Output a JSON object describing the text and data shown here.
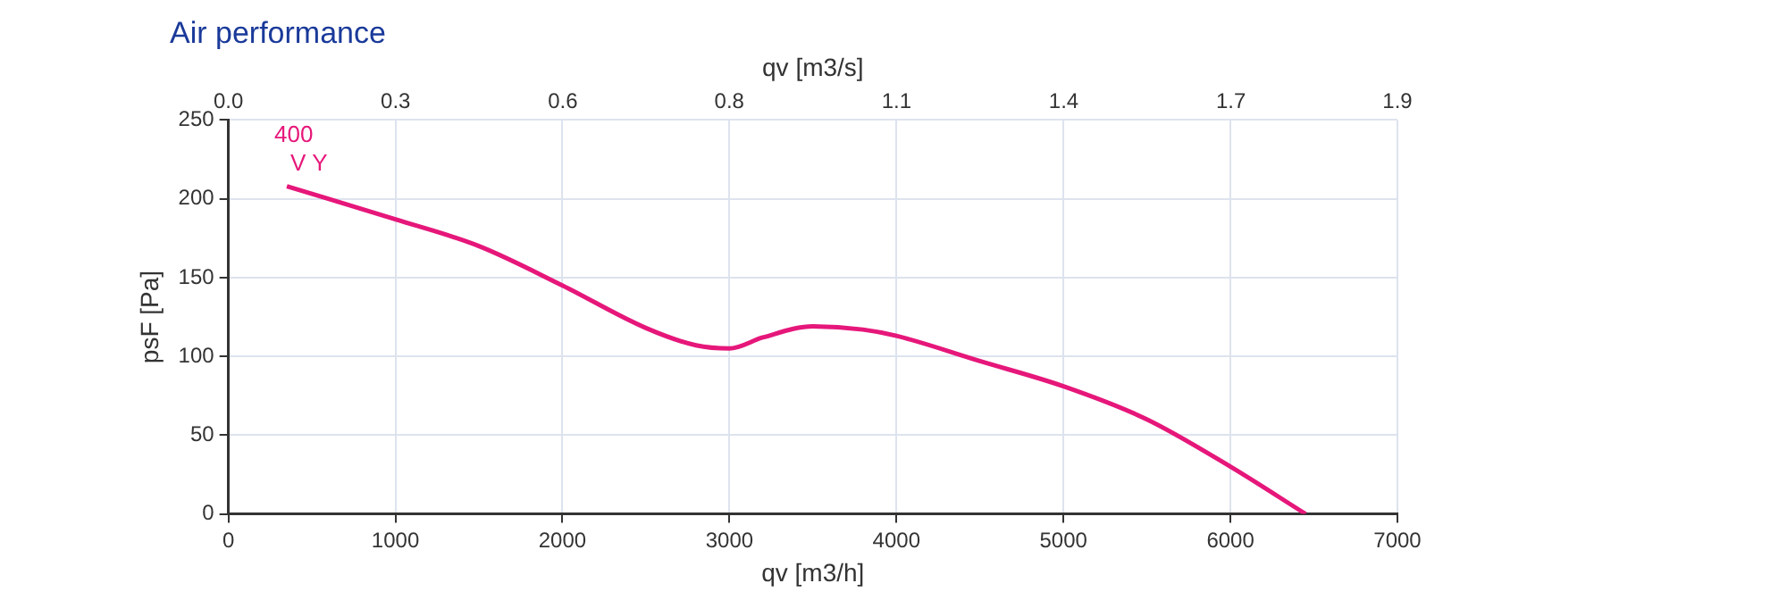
{
  "chart_data": {
    "type": "line",
    "title": "Air performance",
    "xlabel": "qv [m3/h]",
    "ylabel": "psF [Pa]",
    "x2label": "qv [m3/s]",
    "xlim": [
      0,
      7000
    ],
    "xticks": [
      0,
      1000,
      2000,
      3000,
      4000,
      5000,
      6000,
      7000
    ],
    "x2lim": [
      0,
      1.944
    ],
    "x2ticks": [
      {
        "value": 0,
        "label": "0.0"
      },
      {
        "value": 0.278,
        "label": "0.3"
      },
      {
        "value": 0.556,
        "label": "0.6"
      },
      {
        "value": 0.833,
        "label": "0.8"
      },
      {
        "value": 1.111,
        "label": "1.1"
      },
      {
        "value": 1.389,
        "label": "1.4"
      },
      {
        "value": 1.667,
        "label": "1.7"
      },
      {
        "value": 1.944,
        "label": "1.9"
      }
    ],
    "ylim": [
      0,
      250
    ],
    "yticks": [
      0,
      50,
      100,
      150,
      200,
      250
    ],
    "grid": true,
    "marker": "none",
    "line_style": "solid",
    "series": [
      {
        "name": "400 V Y",
        "color": "#e6177a",
        "x": [
          350,
          1000,
          1500,
          2000,
          2500,
          2800,
          3000,
          3200,
          3500,
          3800,
          4000,
          4500,
          5000,
          5500,
          6000,
          6450
        ],
        "values": [
          208,
          187,
          170,
          145,
          118,
          107,
          105,
          112,
          119,
          117,
          113,
          97,
          81,
          60,
          30,
          0
        ]
      }
    ]
  }
}
